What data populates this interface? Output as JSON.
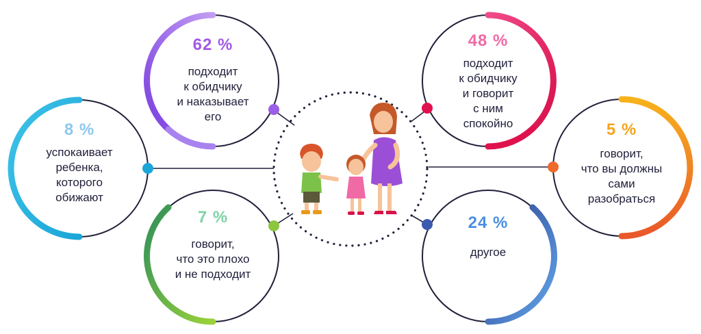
{
  "items": [
    {
      "id": "n62",
      "percent": "62 %",
      "text": "подходит\nк обидчику\nи наказывает\nего",
      "color": "#a259e6",
      "gradient": [
        "#7a3fe0",
        "#b78cf0"
      ]
    },
    {
      "id": "n48",
      "percent": "48 %",
      "text": "подходит\nк обидчику\nи говорит\nс ним\nспокойно",
      "color": "#f06aa6",
      "gradient": [
        "#e0124e",
        "#f04a8a"
      ]
    },
    {
      "id": "n8",
      "percent": "8 %",
      "text": "успокаивает\nребенка,\nкоторого\nобижают",
      "color": "#8ec9ee",
      "gradient": [
        "#1aa6d8",
        "#3fc3e8"
      ]
    },
    {
      "id": "n5",
      "percent": "5 %",
      "text": "говорит,\nчто вы должны\nсами\nразобраться",
      "color": "#f5a51e",
      "gradient": [
        "#f28c1e",
        "#e9572a"
      ]
    },
    {
      "id": "n7",
      "percent": "7 %",
      "text": "говорит,\nчто это плохо\nи не подходит",
      "color": "#7fd3a6",
      "gradient": [
        "#2f8f5a",
        "#8fd03a"
      ]
    },
    {
      "id": "n24",
      "percent": "24 %",
      "text": "другое",
      "color": "#4a8fe4",
      "gradient": [
        "#2e3f8f",
        "#5b9ee8"
      ]
    }
  ],
  "illustration": "mother-comforting-crying-girl-boy-pointing"
}
